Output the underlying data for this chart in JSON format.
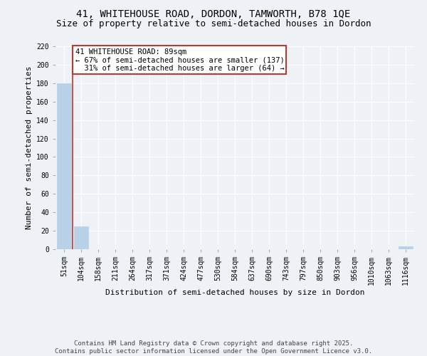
{
  "title": "41, WHITEHOUSE ROAD, DORDON, TAMWORTH, B78 1QE",
  "subtitle": "Size of property relative to semi-detached houses in Dordon",
  "xlabel": "Distribution of semi-detached houses by size in Dordon",
  "ylabel": "Number of semi-detached properties",
  "categories": [
    "51sqm",
    "104sqm",
    "158sqm",
    "211sqm",
    "264sqm",
    "317sqm",
    "371sqm",
    "424sqm",
    "477sqm",
    "530sqm",
    "584sqm",
    "637sqm",
    "690sqm",
    "743sqm",
    "797sqm",
    "850sqm",
    "903sqm",
    "956sqm",
    "1010sqm",
    "1063sqm",
    "1116sqm"
  ],
  "values": [
    180,
    25,
    0,
    0,
    0,
    0,
    0,
    0,
    0,
    0,
    0,
    0,
    0,
    0,
    0,
    0,
    0,
    0,
    0,
    0,
    3
  ],
  "bar_color": "#b8d0e8",
  "bar_edge_color": "#b8d0e8",
  "property_line_bin": 1,
  "property_line_color": "#c0392b",
  "annotation_line1": "41 WHITEHOUSE ROAD: 89sqm",
  "annotation_line2": "← 67% of semi-detached houses are smaller (137)",
  "annotation_line3": "  31% of semi-detached houses are larger (64) →",
  "annotation_box_color": "#ffffff",
  "annotation_box_edge_color": "#c0392b",
  "ylim": [
    0,
    220
  ],
  "yticks": [
    0,
    20,
    40,
    60,
    80,
    100,
    120,
    140,
    160,
    180,
    200,
    220
  ],
  "background_color": "#eef2f7",
  "grid_color": "#ffffff",
  "footer": "Contains HM Land Registry data © Crown copyright and database right 2025.\nContains public sector information licensed under the Open Government Licence v3.0.",
  "title_fontsize": 10,
  "subtitle_fontsize": 9,
  "axis_label_fontsize": 8,
  "tick_fontsize": 7,
  "annotation_fontsize": 7.5,
  "footer_fontsize": 6.5
}
